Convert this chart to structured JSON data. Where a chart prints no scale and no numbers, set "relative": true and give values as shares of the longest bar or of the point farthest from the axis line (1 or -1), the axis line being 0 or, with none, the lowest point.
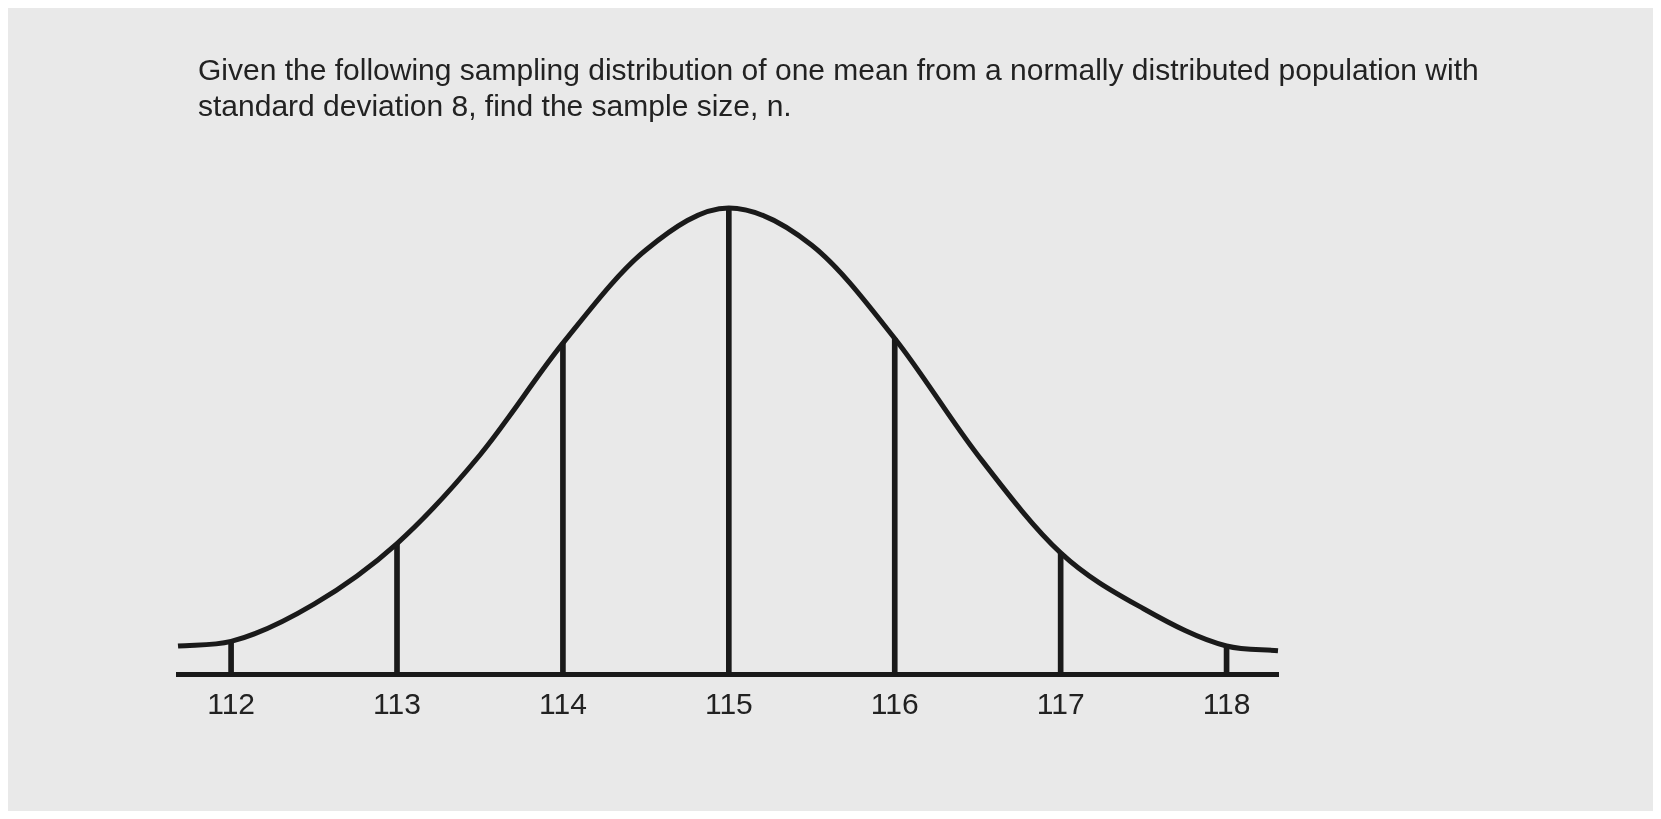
{
  "chart_data": {
    "type": "line",
    "title": "Given the following sampling distribution of one mean from a normally distributed population with standard deviation 8, find the sample size, n.",
    "relative": true,
    "xlim": [
      111.68,
      118.31
    ],
    "xticks": [
      112,
      113,
      114,
      115,
      116,
      117,
      118
    ],
    "grid": false,
    "legend": false,
    "series": [
      {
        "color": "#1a1a1a",
        "x": [
          111.68,
          112,
          112.5,
          113,
          113.5,
          114,
          114.5,
          115,
          115.5,
          116,
          116.5,
          117,
          117.5,
          118,
          118.31
        ],
        "values": [
          0.06,
          0.07,
          0.15,
          0.28,
          0.47,
          0.71,
          0.91,
          1,
          0.92,
          0.72,
          0.47,
          0.26,
          0.14,
          0.06,
          0.05
        ]
      },
      {
        "type": "bar",
        "color": "#1a1a1a",
        "x": [
          112,
          113,
          114,
          115,
          116,
          117,
          118
        ],
        "values": [
          0.07,
          0.28,
          0.71,
          1,
          0.72,
          0.26,
          0.06
        ]
      }
    ]
  }
}
